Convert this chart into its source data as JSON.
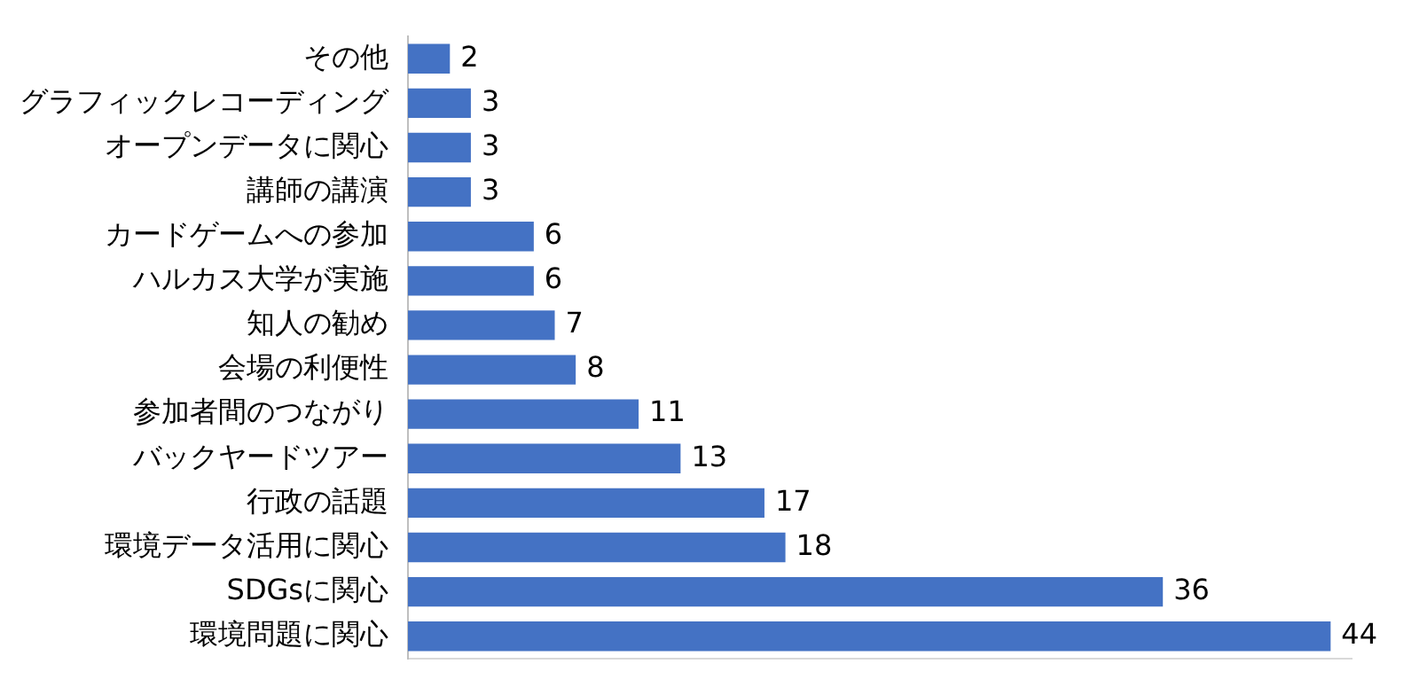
{
  "chart_data": {
    "type": "bar",
    "orientation": "horizontal",
    "categories": [
      "その他",
      "グラフィックレコーディング",
      "オープンデータに関心",
      "講師の講演",
      "カードゲームへの参加",
      "ハルカス大学が実施",
      "知人の勧め",
      "会場の利便性",
      "参加者間のつながり",
      "バックヤードツアー",
      "行政の話題",
      "環境データ活用に関心",
      "SDGsに関心",
      "環境問題に関心"
    ],
    "values": [
      2,
      3,
      3,
      3,
      6,
      6,
      7,
      8,
      11,
      13,
      17,
      18,
      36,
      44
    ],
    "color": "#4472c4",
    "data_labels": true,
    "grid": false,
    "legend": false
  }
}
